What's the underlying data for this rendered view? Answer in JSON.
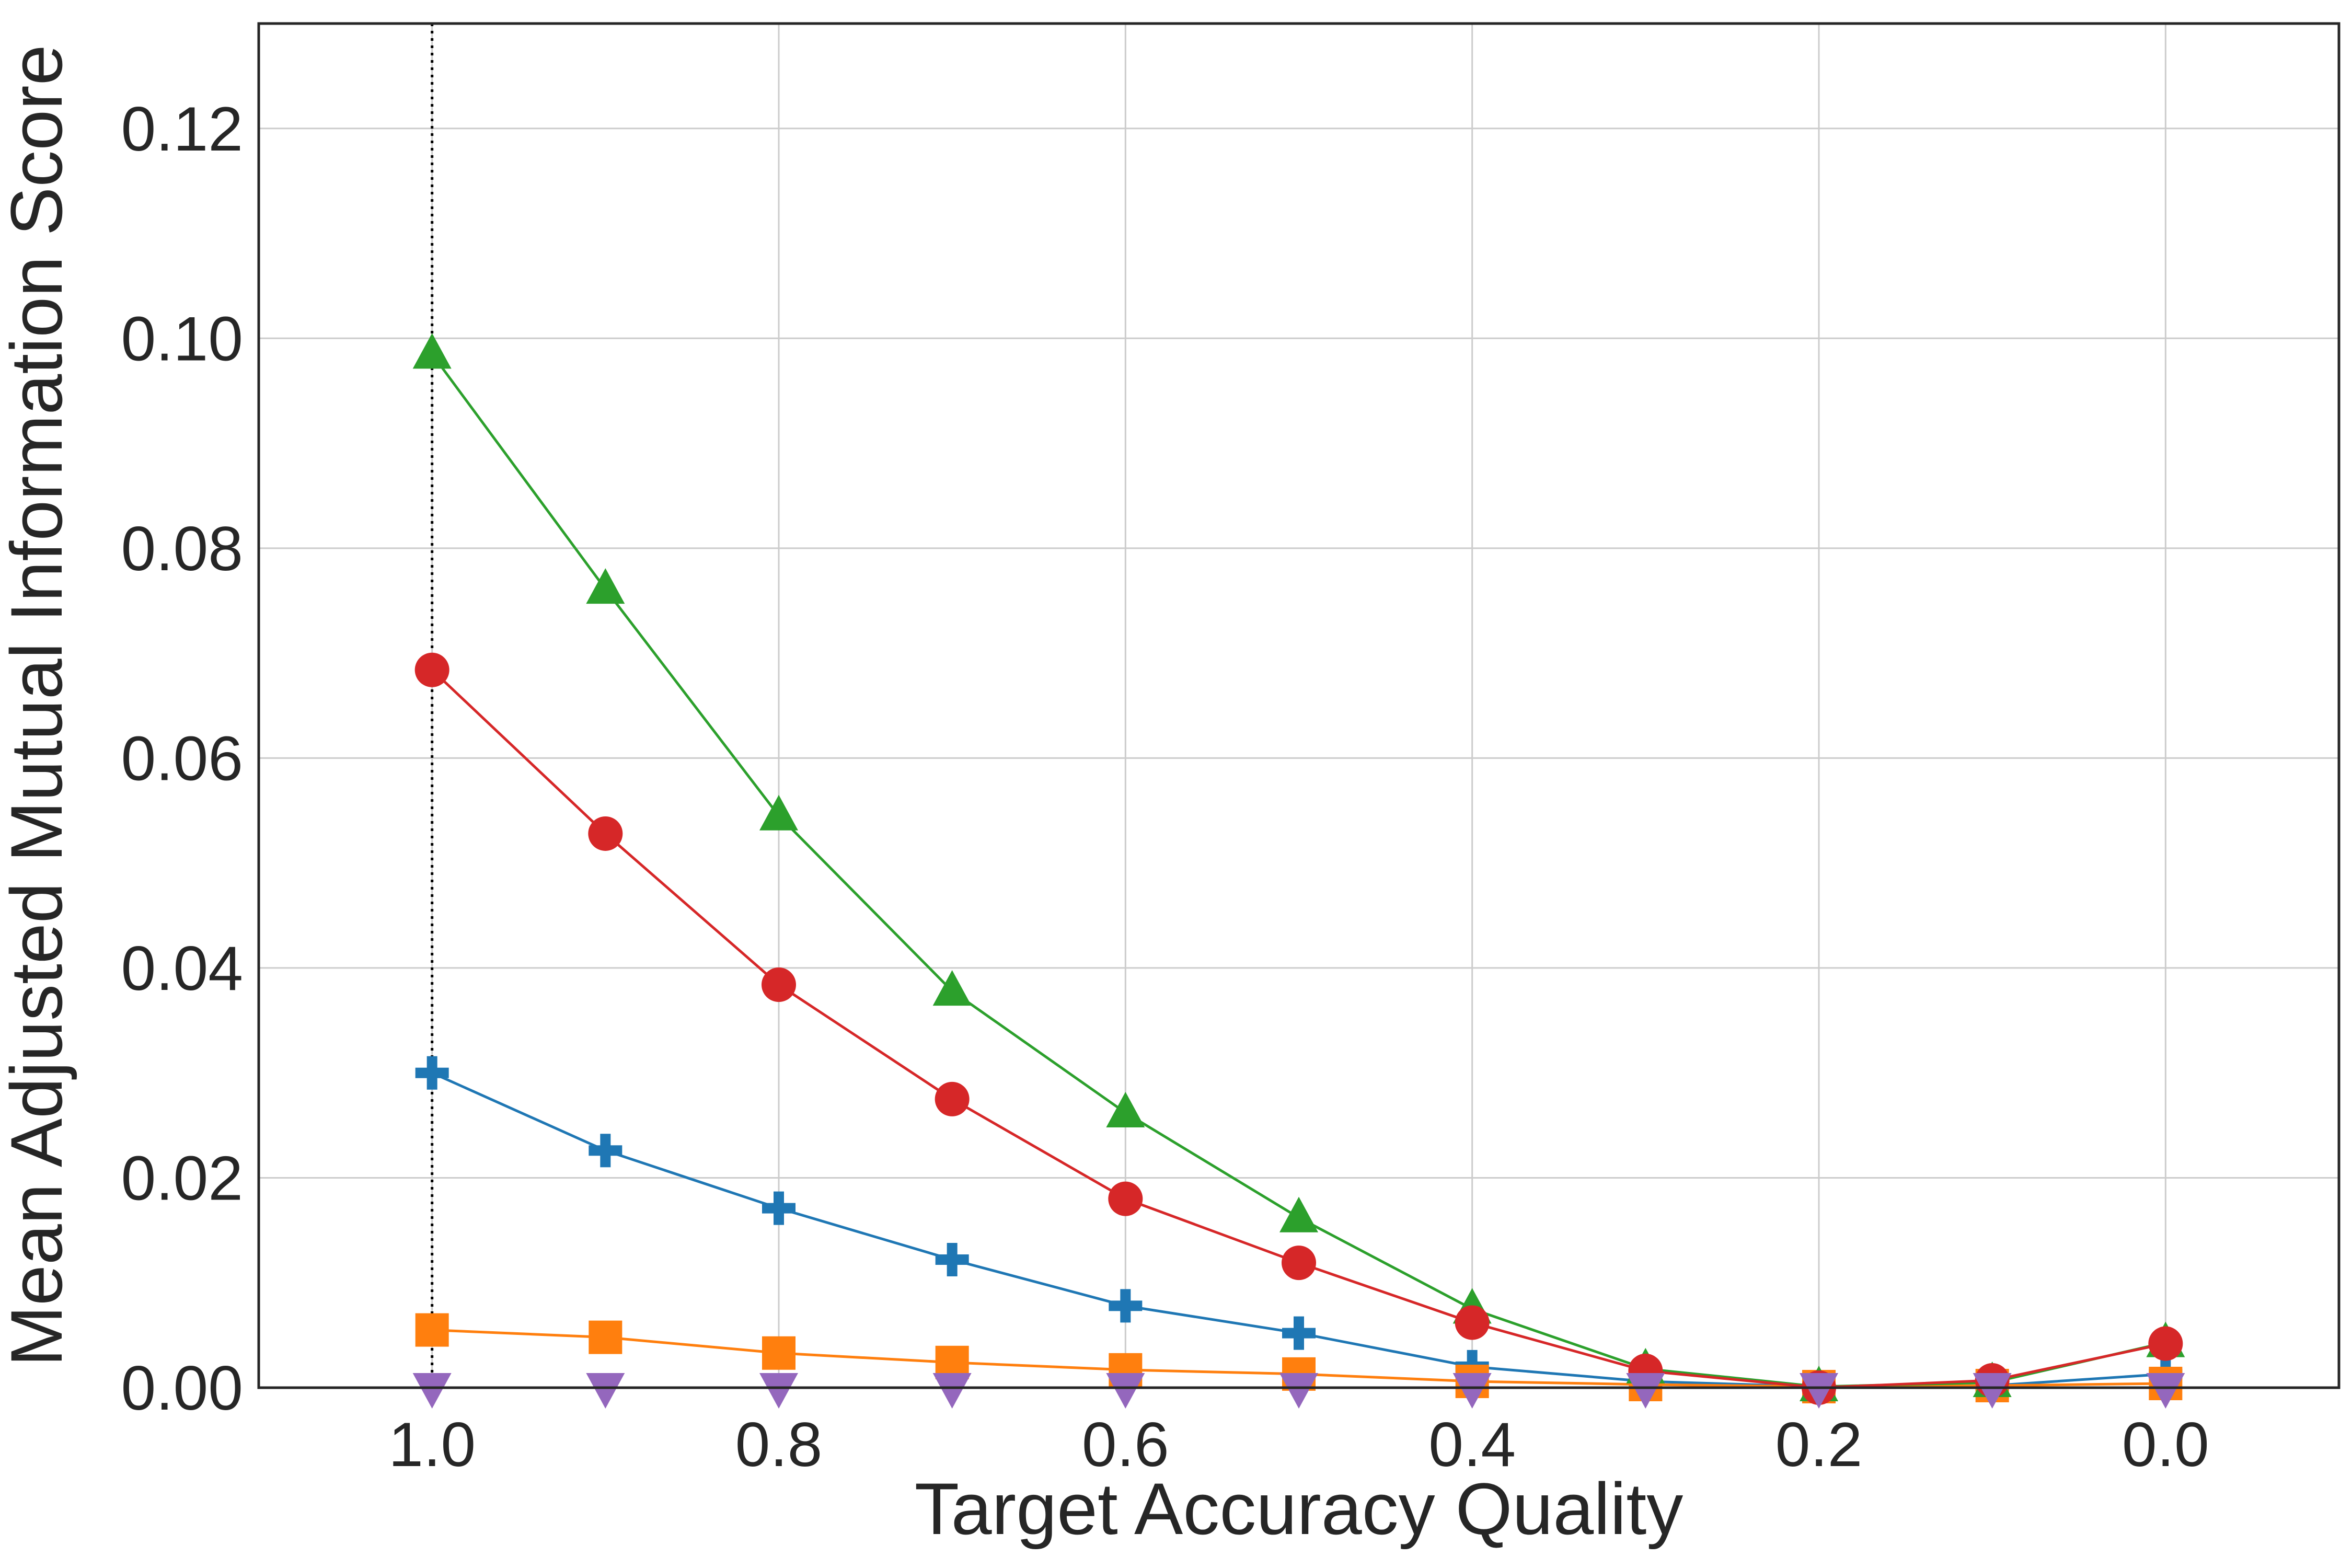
{
  "chart_data": {
    "type": "line",
    "title": "",
    "xlabel": "Target Accuracy Quality",
    "ylabel": "Mean Adjusted Mutual Information Score",
    "x": [
      1.0,
      0.9,
      0.8,
      0.7,
      0.6,
      0.5,
      0.4,
      0.3,
      0.2,
      0.1,
      0.0
    ],
    "xlim": [
      1.1,
      -0.1
    ],
    "ylim": [
      0.0,
      0.13
    ],
    "x_reversed": true,
    "xticks": [
      "1.0",
      "0.8",
      "0.6",
      "0.4",
      "0.2",
      "0.0"
    ],
    "yticks": [
      "0.00",
      "0.02",
      "0.04",
      "0.06",
      "0.08",
      "0.10",
      "0.12"
    ],
    "grid": true,
    "reference_line": {
      "x": 1.0,
      "style": "dotted",
      "color": "#000000"
    },
    "series": [
      {
        "color": "#1f77b4",
        "marker": "plus",
        "values": [
          0.03,
          0.0226,
          0.0171,
          0.0122,
          0.0078,
          0.0052,
          0.002,
          0.0006,
          0.0001,
          0.0002,
          0.0013
        ]
      },
      {
        "color": "#ff7f0e",
        "marker": "square",
        "values": [
          0.0055,
          0.0048,
          0.0033,
          0.0024,
          0.0017,
          0.0013,
          0.0006,
          0.0003,
          0.0001,
          0.0002,
          0.0004
        ]
      },
      {
        "color": "#2ca02c",
        "marker": "triangle-up",
        "values": [
          0.0985,
          0.0761,
          0.0545,
          0.0378,
          0.0262,
          0.0162,
          0.0075,
          0.0018,
          0.0001,
          0.0005,
          0.0043
        ]
      },
      {
        "color": "#d62728",
        "marker": "circle",
        "values": [
          0.0684,
          0.0528,
          0.0384,
          0.0275,
          0.018,
          0.0119,
          0.0062,
          0.0016,
          0.0,
          0.0007,
          0.0042
        ]
      },
      {
        "color": "#9467bd",
        "marker": "triangle-down",
        "values": [
          0.0,
          0.0,
          0.0,
          0.0,
          0.0,
          0.0,
          0.0,
          0.0,
          0.0,
          0.0,
          0.0
        ]
      }
    ]
  }
}
